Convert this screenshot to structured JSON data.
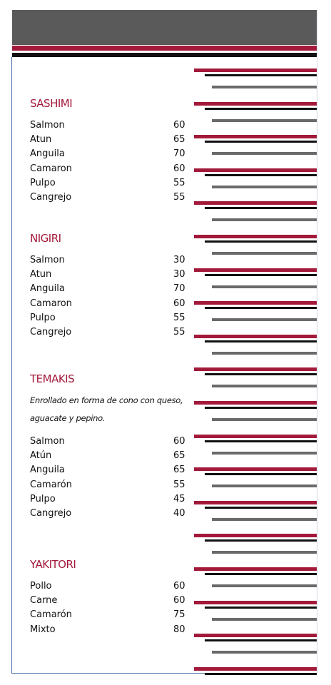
{
  "sections": [
    {
      "title": "SASHIMI",
      "items": [
        {
          "name": "Salmon",
          "price": 60
        },
        {
          "name": "Atun",
          "price": 65
        },
        {
          "name": "Anguila",
          "price": 70
        },
        {
          "name": "Camaron",
          "price": 60
        },
        {
          "name": "Pulpo",
          "price": 55
        },
        {
          "name": "Cangrejo",
          "price": 55
        }
      ]
    },
    {
      "title": "NIGIRI",
      "items": [
        {
          "name": "Salmon",
          "price": 30
        },
        {
          "name": "Atun",
          "price": 30
        },
        {
          "name": "Anguila",
          "price": 70
        },
        {
          "name": "Camaron",
          "price": 60
        },
        {
          "name": "Pulpo",
          "price": 55
        },
        {
          "name": "Cangrejo",
          "price": 55
        }
      ]
    },
    {
      "title": "TEMAKIS",
      "description": [
        "Enrollado en forma de cono con queso,",
        "aguacate y pepino."
      ],
      "items": [
        {
          "name": "Salmon",
          "price": 60
        },
        {
          "name": "Atún",
          "price": 65
        },
        {
          "name": "Anguila",
          "price": 65
        },
        {
          "name": "Camarón",
          "price": 55
        },
        {
          "name": "Pulpo",
          "price": 45
        },
        {
          "name": "Cangrejo",
          "price": 40
        }
      ]
    },
    {
      "title": "YAKITORI",
      "items": [
        {
          "name": "Pollo",
          "price": 60
        },
        {
          "name": "Carne",
          "price": 60
        },
        {
          "name": "Camarón",
          "price": 75
        },
        {
          "name": "Mixto",
          "price": 80
        }
      ]
    }
  ]
}
